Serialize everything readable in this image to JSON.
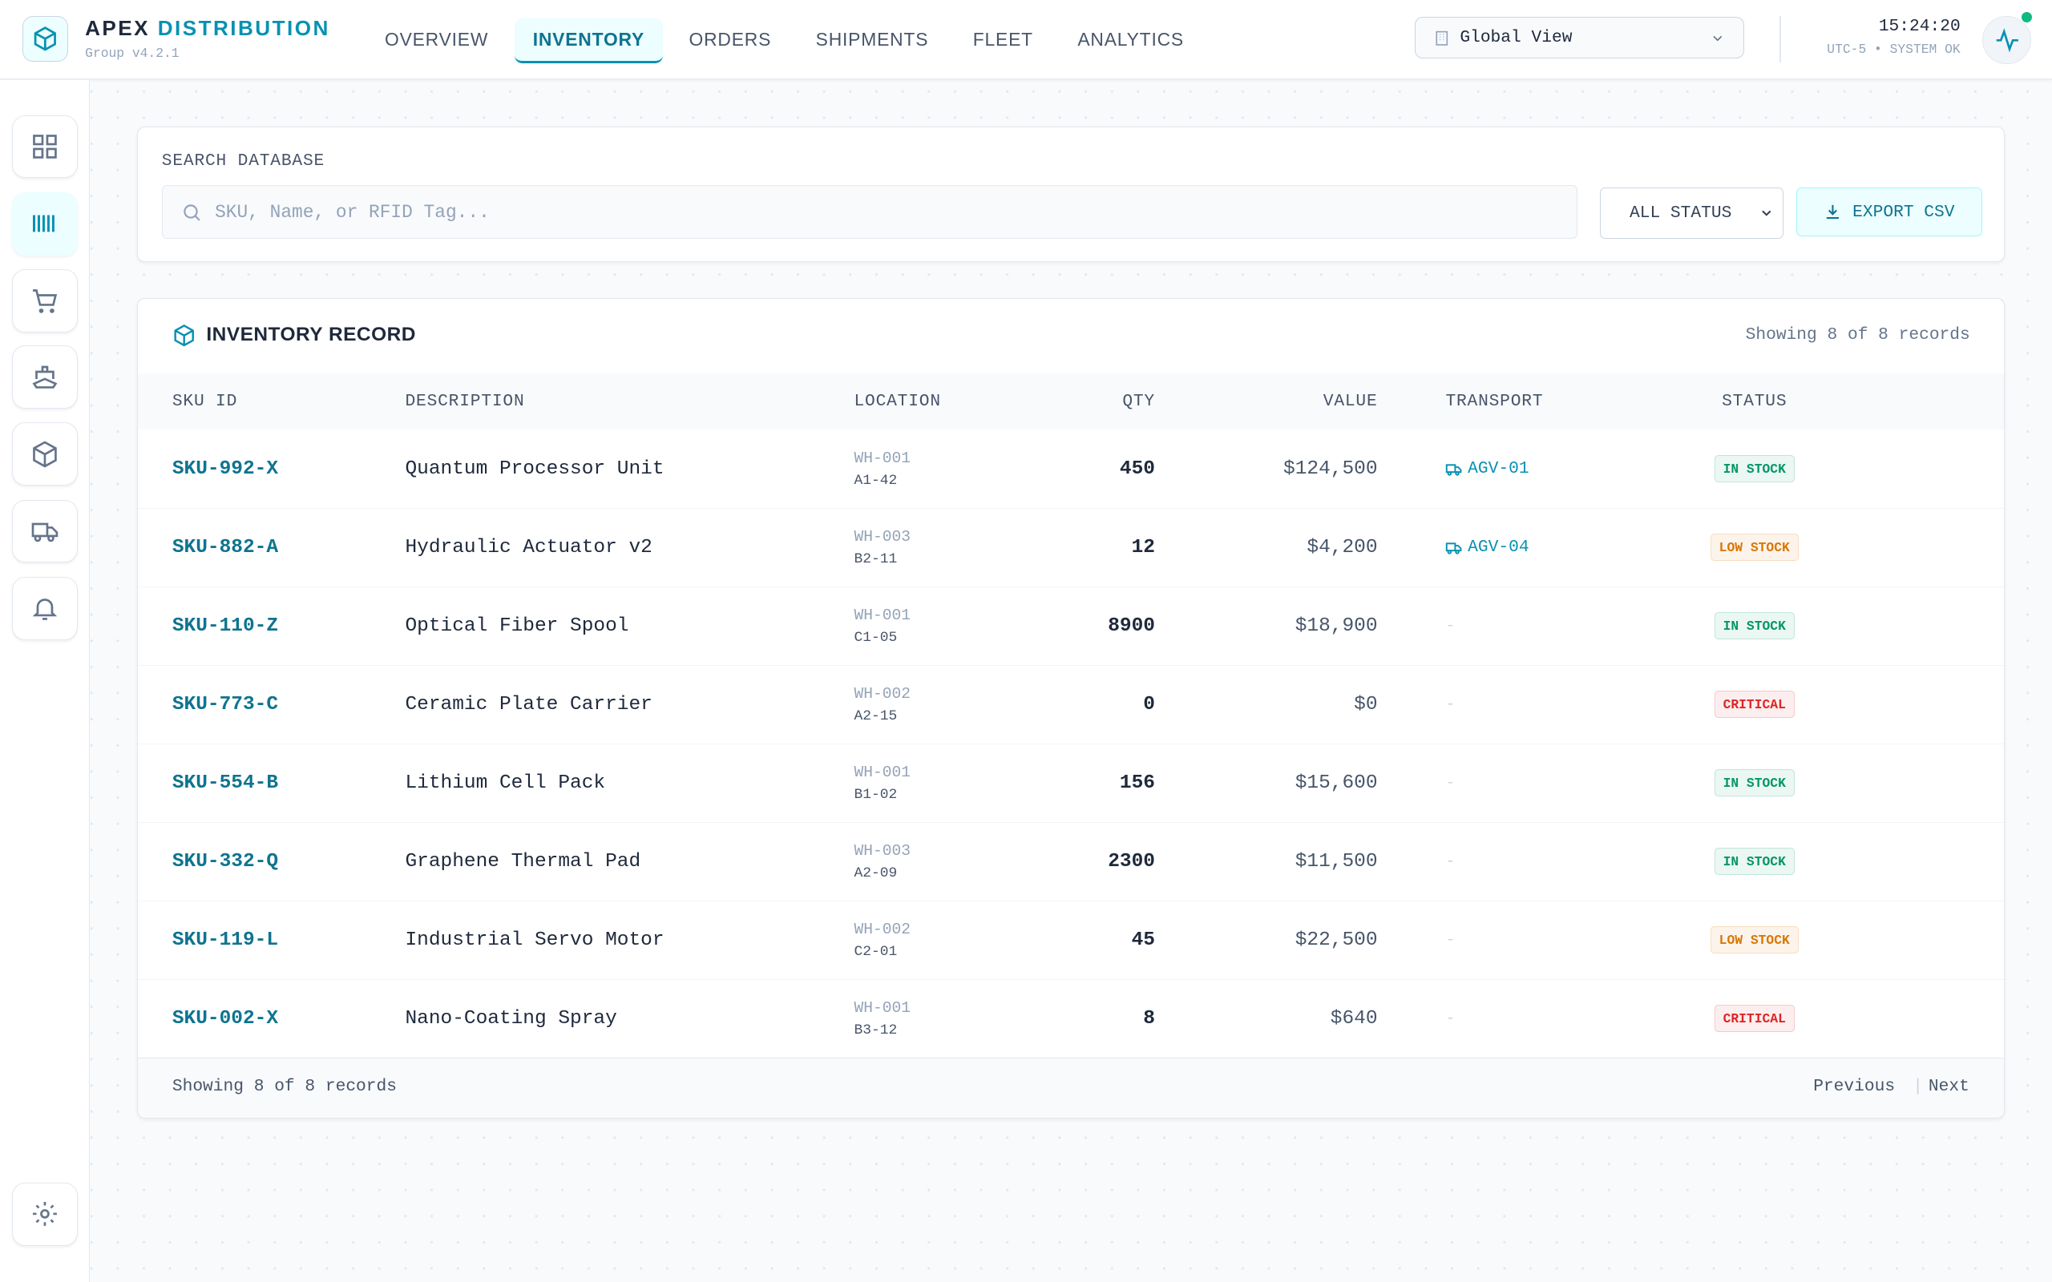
{
  "header": {
    "brand": "APEX",
    "brand_accent": "DISTRIBUTION",
    "version": "Group v4.2.1",
    "nav": [
      "OVERVIEW",
      "INVENTORY",
      "ORDERS",
      "SHIPMENTS",
      "FLEET",
      "ANALYTICS"
    ],
    "active_nav": 1,
    "view": "Global View",
    "time": "15:24:20",
    "status": "UTC-5 • SYSTEM OK"
  },
  "search": {
    "label": "SEARCH DATABASE",
    "placeholder": "SKU, Name, or RFID Tag...",
    "filter": "ALL STATUS",
    "export": "EXPORT CSV"
  },
  "table": {
    "title": "INVENTORY RECORD",
    "count": "Showing 8 of 8 records",
    "columns": [
      "SKU ID",
      "DESCRIPTION",
      "LOCATION",
      "QTY",
      "VALUE",
      "TRANSPORT",
      "STATUS"
    ],
    "rows": [
      [
        "SKU-992-X",
        "Quantum Processor Unit",
        "WH-001",
        "A1-42",
        450,
        "$124,500",
        "AGV-01",
        "IN STOCK"
      ],
      [
        "SKU-882-A",
        "Hydraulic Actuator v2",
        "WH-003",
        "B2-11",
        12,
        "$4,200",
        "AGV-04",
        "LOW STOCK"
      ],
      [
        "SKU-110-Z",
        "Optical Fiber Spool",
        "WH-001",
        "C1-05",
        8900,
        "$18,900",
        "-",
        "IN STOCK"
      ],
      [
        "SKU-773-C",
        "Ceramic Plate Carrier",
        "WH-002",
        "A2-15",
        0,
        "$0",
        "-",
        "CRITICAL"
      ],
      [
        "SKU-554-B",
        "Lithium Cell Pack",
        "WH-001",
        "B1-02",
        156,
        "$15,600",
        "-",
        "IN STOCK"
      ],
      [
        "SKU-332-Q",
        "Graphene Thermal Pad",
        "WH-003",
        "A2-09",
        2300,
        "$11,500",
        "-",
        "IN STOCK"
      ],
      [
        "SKU-119-L",
        "Industrial Servo Motor",
        "WH-002",
        "C2-01",
        45,
        "$22,500",
        "-",
        "LOW STOCK"
      ],
      [
        "SKU-002-X",
        "Nano-Coating Spray",
        "WH-001",
        "B3-12",
        8,
        "$640",
        "-",
        "CRITICAL"
      ]
    ],
    "status_colors": [
      "#059669",
      "#d97706",
      "#059669",
      "#dc2626",
      "#059669",
      "#059669",
      "#d97706",
      "#dc2626"
    ],
    "transport_links": [
      true,
      true,
      false,
      false,
      false,
      false,
      false,
      false
    ],
    "footer": "Showing 8 of 8 records",
    "previous": "Previous",
    "next": "Next"
  }
}
